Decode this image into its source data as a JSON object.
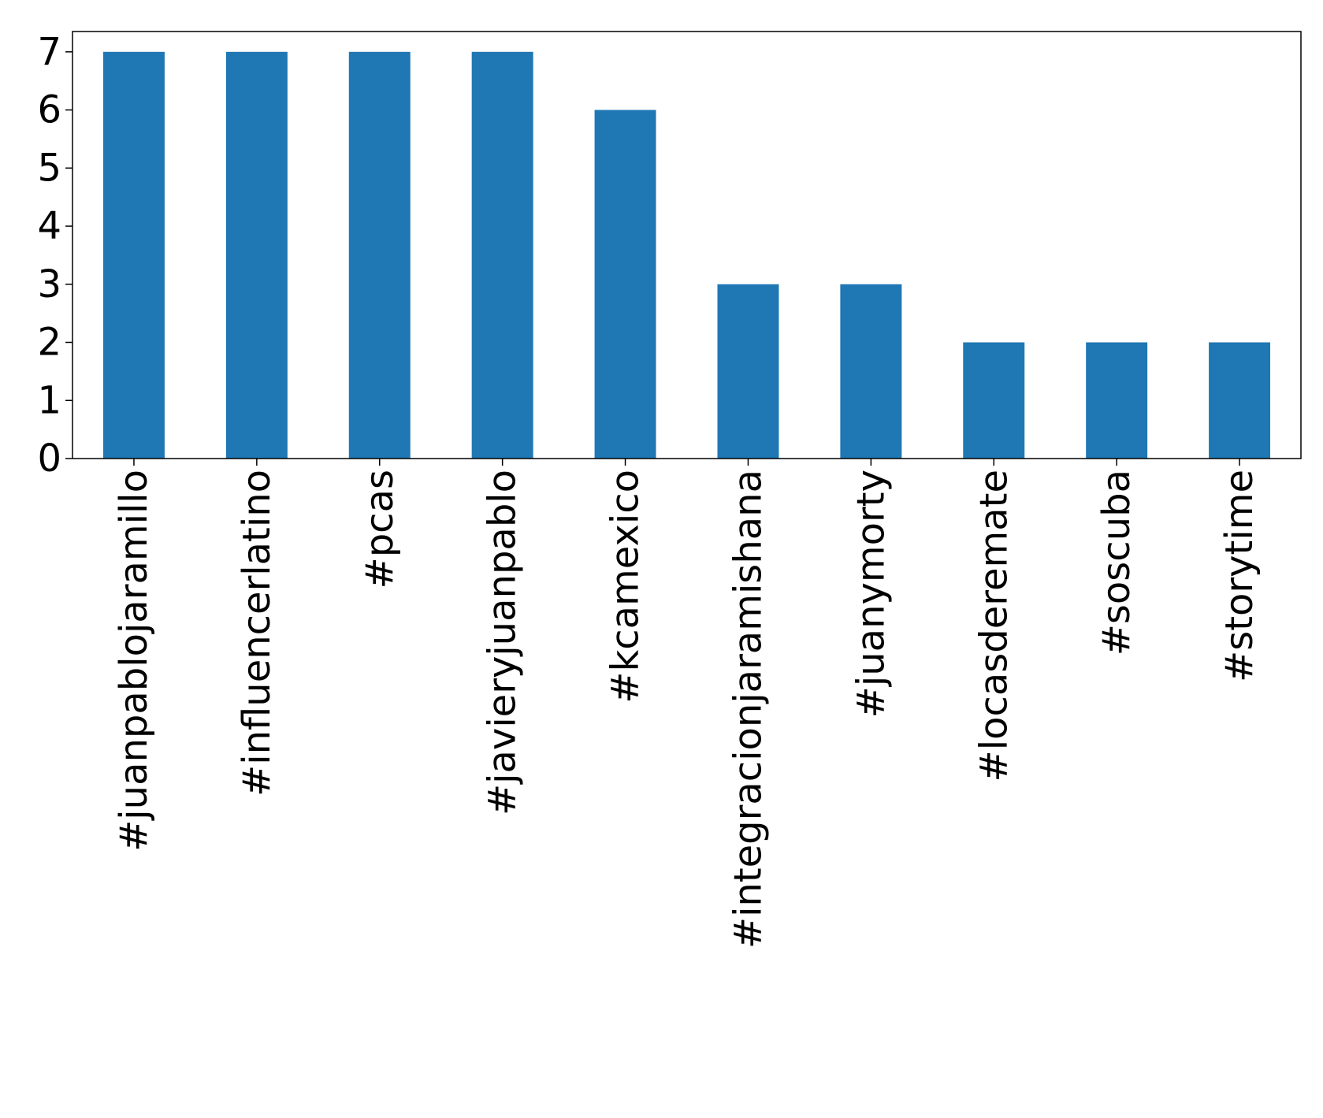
{
  "chart_data": {
    "type": "bar",
    "title": "",
    "xlabel": "",
    "ylabel": "",
    "categories": [
      "#juanpablojaramillo",
      "#influencerlatino",
      "#pcas",
      "#javieryjuanpablo",
      "#kcamexico",
      "#integracionjaramishana",
      "#juanymorty",
      "#locasderemate",
      "#soscuba",
      "#storytime"
    ],
    "values": [
      7,
      7,
      7,
      7,
      6,
      3,
      3,
      2,
      2,
      2
    ],
    "ylim": [
      0,
      7.35
    ],
    "yticks": [
      "0",
      "1",
      "2",
      "3",
      "4",
      "5",
      "6",
      "7"
    ],
    "grid": false,
    "legend": "none",
    "bar_color": "#1f77b4"
  }
}
